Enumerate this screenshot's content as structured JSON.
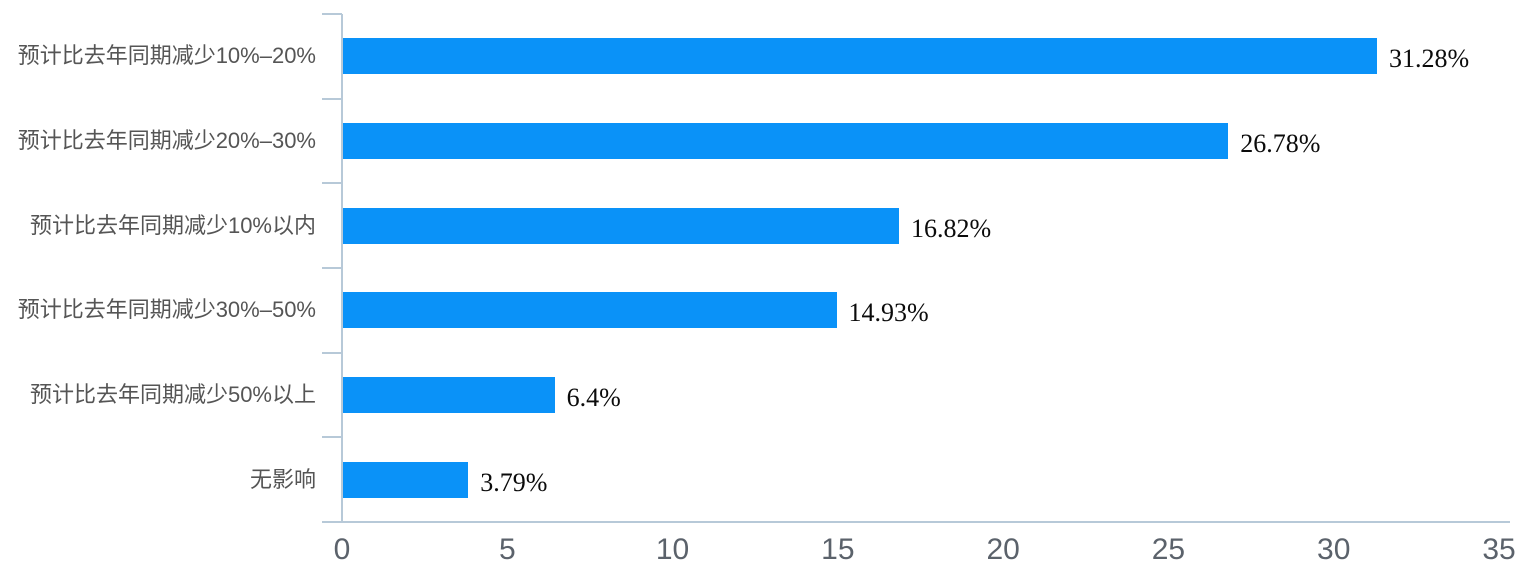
{
  "chart_data": {
    "type": "bar",
    "orientation": "horizontal",
    "title": "",
    "xlabel": "",
    "ylabel": "",
    "categories": [
      "预计比去年同期减少10%–20%",
      "预计比去年同期减少20%–30%",
      "预计比去年同期减少10%以内",
      "预计比去年同期减少30%–50%",
      "预计比去年同期减少50%以上",
      "无影响"
    ],
    "values": [
      31.28,
      26.78,
      16.82,
      14.93,
      6.4,
      3.79
    ],
    "data_labels": [
      "31.28%",
      "26.78%",
      "16.82%",
      "14.93%",
      "6.4%",
      "3.79%"
    ],
    "x_ticks": [
      0,
      5,
      10,
      15,
      20,
      25,
      30,
      35
    ],
    "xlim": [
      0,
      35
    ],
    "grid": false,
    "legend": "none",
    "colors": {
      "bar": "#0a92f8",
      "axis_line": "#b7c9d8",
      "category_label": "#555555",
      "tick_label": "#5b626b",
      "value_label": "#0b0b0b",
      "background": "#ffffff"
    }
  }
}
